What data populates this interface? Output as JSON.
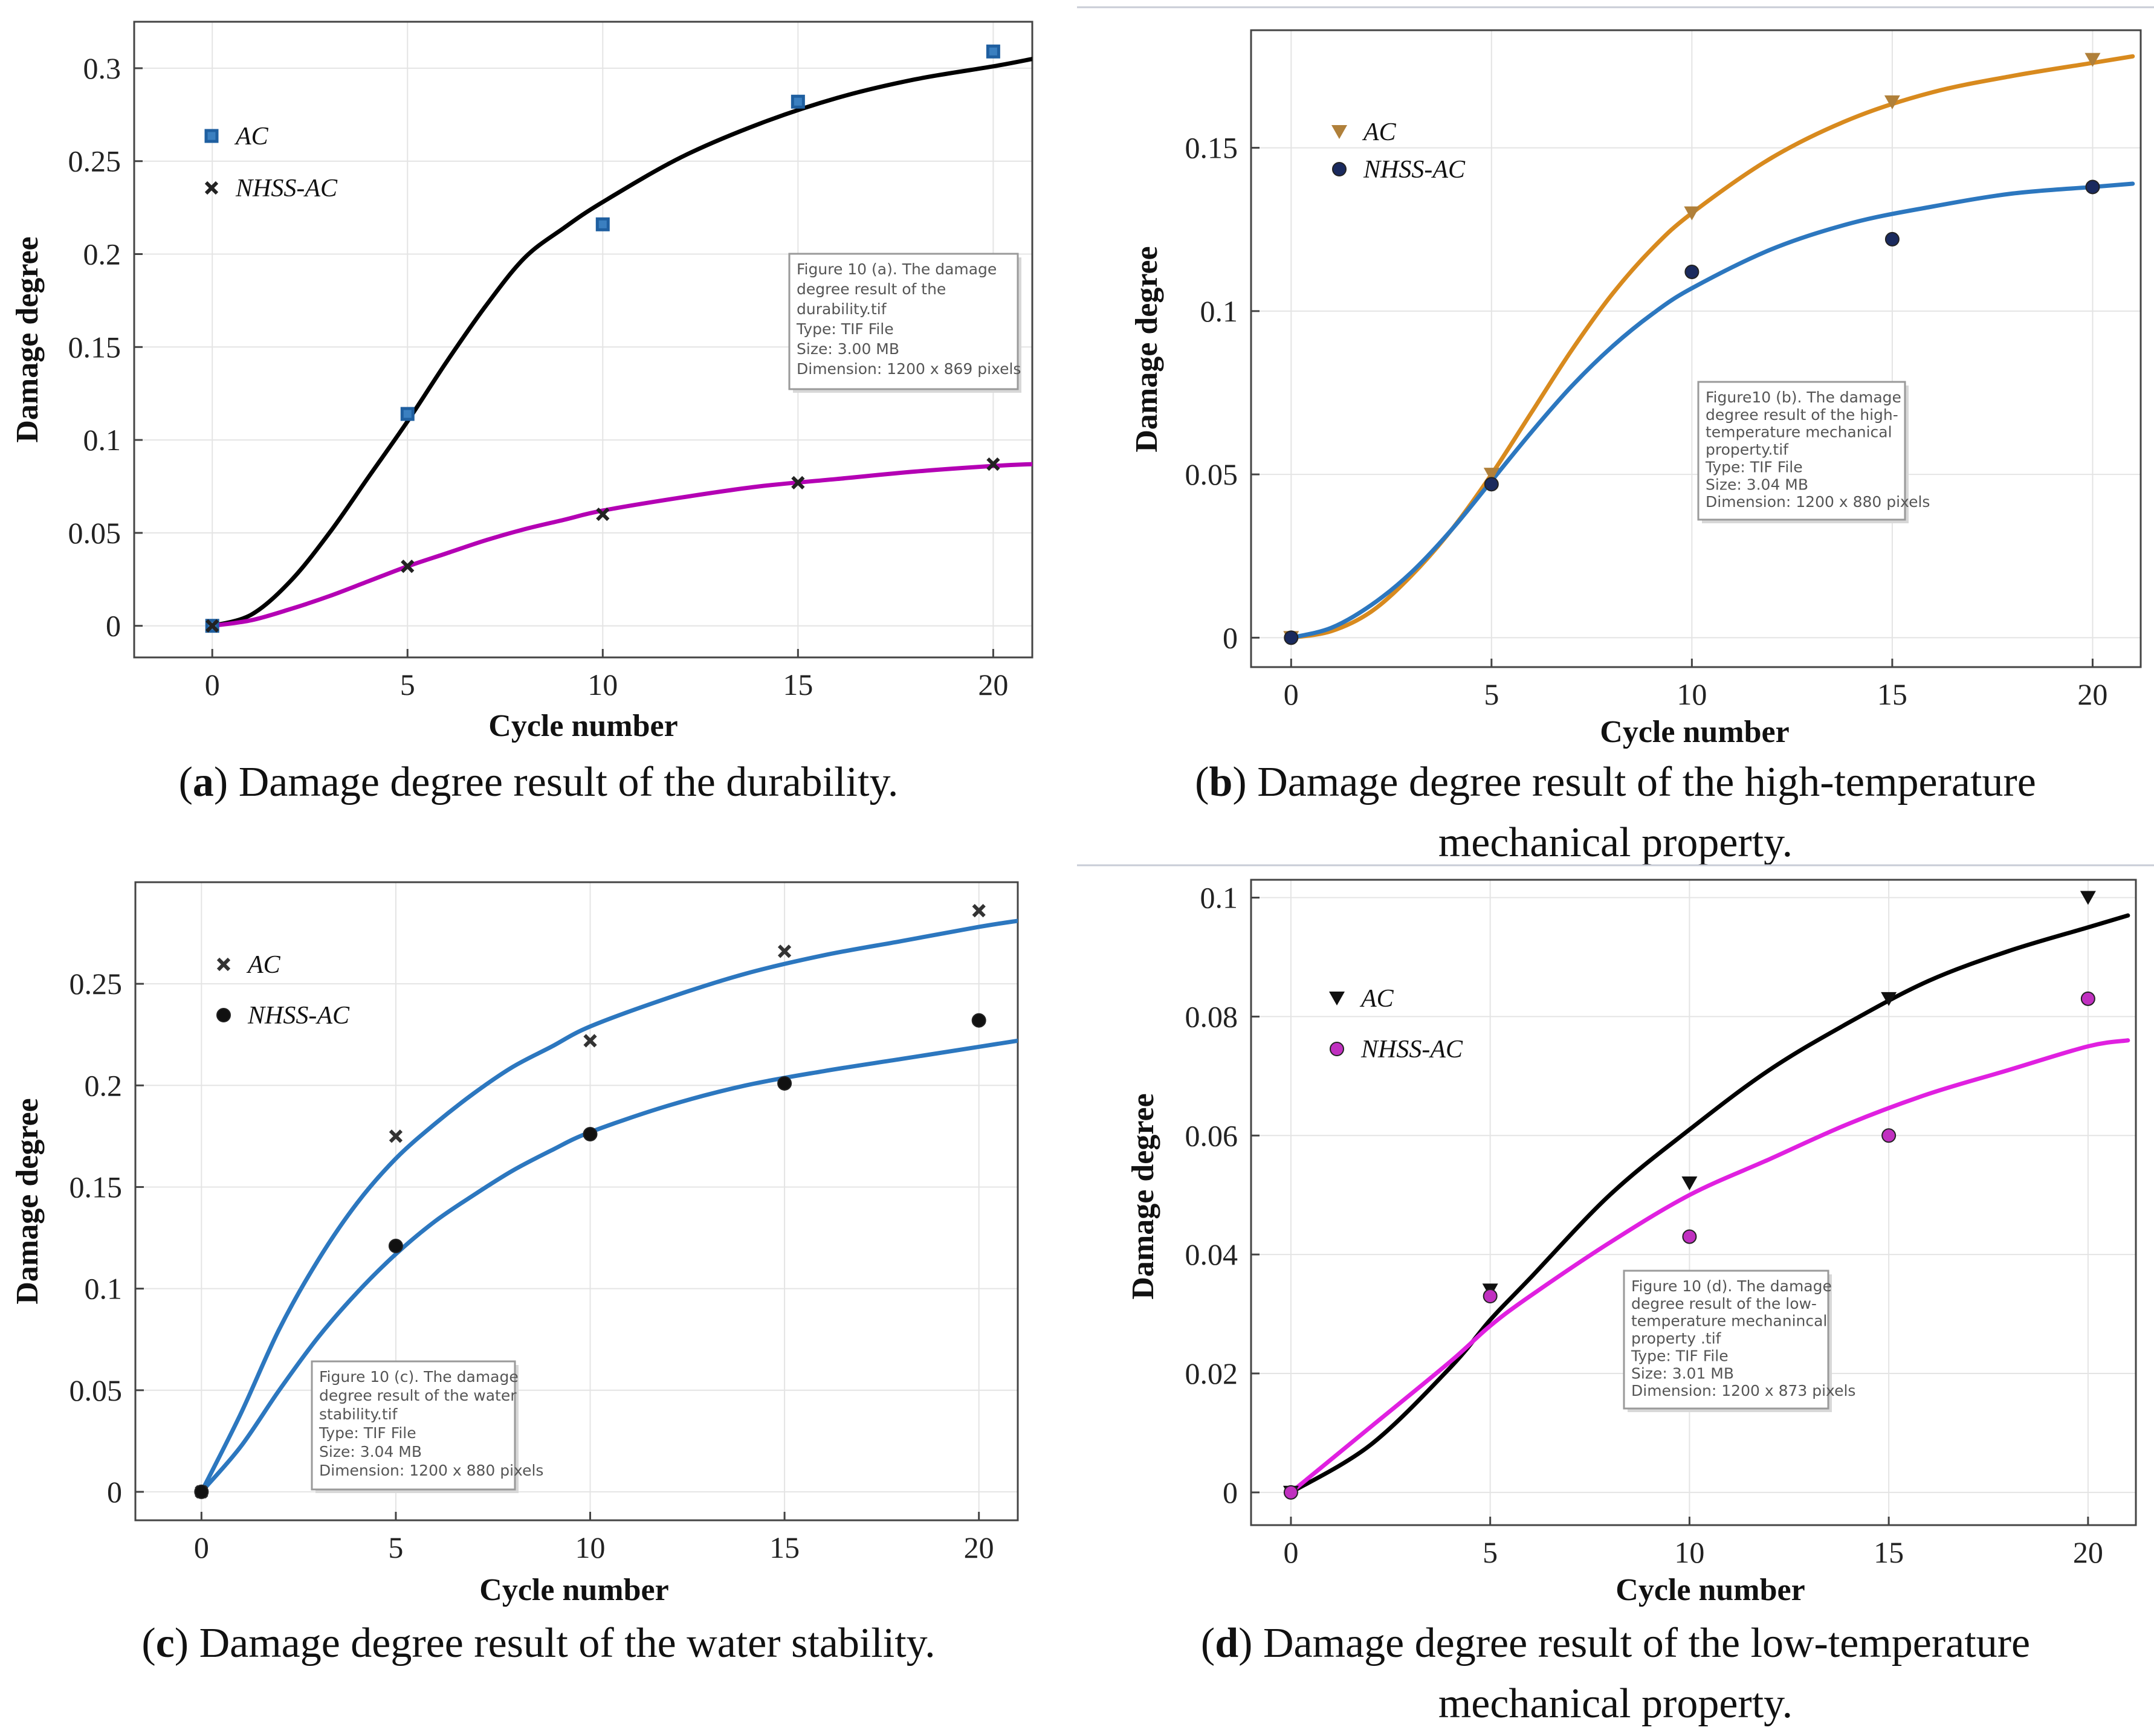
{
  "chart_data": [
    {
      "type": "line",
      "panel_letter": "a",
      "caption": "Damage degree result of the durability.",
      "xlabel": "Cycle number",
      "ylabel": "Damage degree",
      "xlim": [
        -2,
        21
      ],
      "ylim": [
        -0.017,
        0.325
      ],
      "xticks": [
        0,
        5,
        10,
        15,
        20
      ],
      "yticks": [
        0,
        0.05,
        0.1,
        0.15,
        0.2,
        0.25,
        0.3
      ],
      "ytick_labels": [
        "0",
        "0.05",
        "0.1",
        "0.15",
        "0.2",
        "0.25",
        "0.3"
      ],
      "grid": true,
      "legend_position": "top-left",
      "series": [
        {
          "name": "AC",
          "color": "#000000",
          "marker": "square",
          "marker_color": "#1f5fa0",
          "x": [
            0,
            5,
            10,
            15,
            20
          ],
          "y": [
            0,
            0.114,
            0.216,
            0.282,
            0.309
          ],
          "fit_x": [
            0,
            1,
            2,
            3,
            4,
            5,
            6,
            7,
            8,
            9,
            10,
            12,
            14,
            16,
            18,
            20,
            21
          ],
          "fit_y": [
            0,
            0.006,
            0.024,
            0.05,
            0.08,
            0.11,
            0.142,
            0.172,
            0.198,
            0.214,
            0.228,
            0.252,
            0.27,
            0.284,
            0.294,
            0.301,
            0.305
          ]
        },
        {
          "name": "NHSS-AC",
          "color": "#b400b4",
          "marker": "x",
          "marker_color": "#222222",
          "x": [
            0,
            5,
            10,
            15,
            20
          ],
          "y": [
            0,
            0.032,
            0.06,
            0.077,
            0.087
          ],
          "fit_x": [
            0,
            1,
            2,
            3,
            4,
            5,
            6,
            7,
            8,
            9,
            10,
            12,
            14,
            16,
            18,
            20,
            21
          ],
          "fit_y": [
            0,
            0.003,
            0.009,
            0.016,
            0.024,
            0.032,
            0.039,
            0.046,
            0.052,
            0.057,
            0.062,
            0.069,
            0.075,
            0.079,
            0.083,
            0.086,
            0.087
          ]
        }
      ],
      "tooltip": [
        "Figure 10 (a). The damage",
        "degree result of the",
        "durability.tif",
        "Type: TIF File",
        "Size: 3.00 MB",
        "Dimension: 1200 x 869 pixels"
      ]
    },
    {
      "type": "line",
      "panel_letter": "b",
      "caption": "Damage degree result of the high-temperature mechanical property.",
      "caption_lines": [
        "Damage degree result of the high-temperature",
        "mechanical property."
      ],
      "xlabel": "Cycle number",
      "ylabel": "Damage degree",
      "xlim": [
        -1,
        21.2
      ],
      "ylim": [
        -0.009,
        0.186
      ],
      "xticks": [
        0,
        5,
        10,
        15,
        20
      ],
      "yticks": [
        0,
        0.05,
        0.1,
        0.15
      ],
      "ytick_labels": [
        "0",
        "0.05",
        "0.1",
        "0.15"
      ],
      "grid": true,
      "legend_position": "top-left",
      "series": [
        {
          "name": "AC",
          "color": "#d88a1e",
          "marker": "triangle-down",
          "marker_color": "#b0803a",
          "x": [
            0,
            5,
            10,
            15,
            20
          ],
          "y": [
            0,
            0.05,
            0.13,
            0.164,
            0.177
          ],
          "fit_x": [
            0,
            1,
            2,
            3,
            4,
            5,
            6,
            7,
            8,
            9,
            10,
            12,
            14,
            16,
            18,
            20,
            21
          ],
          "fit_y": [
            0,
            0.002,
            0.008,
            0.019,
            0.033,
            0.05,
            0.069,
            0.088,
            0.105,
            0.119,
            0.13,
            0.147,
            0.159,
            0.167,
            0.172,
            0.176,
            0.178
          ]
        },
        {
          "name": "NHSS-AC",
          "color": "#2c77bf",
          "marker": "circle",
          "marker_color": "#1a2a5e",
          "x": [
            0,
            5,
            10,
            15,
            20
          ],
          "y": [
            0,
            0.047,
            0.112,
            0.122,
            0.138
          ],
          "fit_x": [
            0,
            1,
            2,
            3,
            4,
            5,
            6,
            7,
            8,
            9,
            10,
            12,
            14,
            16,
            18,
            20,
            21
          ],
          "fit_y": [
            0,
            0.003,
            0.01,
            0.02,
            0.033,
            0.048,
            0.063,
            0.077,
            0.089,
            0.099,
            0.107,
            0.119,
            0.127,
            0.132,
            0.136,
            0.138,
            0.139
          ]
        }
      ],
      "tooltip": [
        "Figure10 (b). The damage",
        "degree result of the high-",
        "temperature mechanical",
        "property.tif",
        "Type: TIF File",
        "Size: 3.04 MB",
        "Dimension: 1200 x 880 pixels"
      ]
    },
    {
      "type": "line",
      "panel_letter": "c",
      "caption": "Damage degree result of the water stability.",
      "xlabel": "Cycle number",
      "ylabel": "Damage degree",
      "xlim": [
        -1.7,
        21
      ],
      "ylim": [
        -0.014,
        0.3
      ],
      "xticks": [
        0,
        5,
        10,
        15,
        20
      ],
      "yticks": [
        0,
        0.05,
        0.1,
        0.15,
        0.2,
        0.25
      ],
      "ytick_labels": [
        "0",
        "0.05",
        "0.1",
        "0.15",
        "0.2",
        "0.25"
      ],
      "grid": true,
      "legend_position": "top-left",
      "series": [
        {
          "name": "AC",
          "color": "#2c77bf",
          "marker": "x",
          "marker_color": "#333333",
          "x": [
            0,
            5,
            10,
            15,
            20
          ],
          "y": [
            0,
            0.175,
            0.222,
            0.266,
            0.286
          ],
          "fit_x": [
            0,
            1,
            2,
            3,
            4,
            5,
            6,
            7,
            8,
            9,
            10,
            12,
            14,
            16,
            18,
            20,
            21
          ],
          "fit_y": [
            0,
            0.038,
            0.08,
            0.114,
            0.142,
            0.164,
            0.181,
            0.196,
            0.209,
            0.219,
            0.229,
            0.243,
            0.255,
            0.264,
            0.271,
            0.278,
            0.281
          ]
        },
        {
          "name": "NHSS-AC",
          "color": "#2c77bf",
          "marker": "circle",
          "marker_color": "#111111",
          "x": [
            0,
            5,
            10,
            15,
            20
          ],
          "y": [
            0,
            0.121,
            0.176,
            0.201,
            0.232
          ],
          "fit_x": [
            0,
            1,
            2,
            3,
            4,
            5,
            6,
            7,
            8,
            9,
            10,
            12,
            14,
            16,
            18,
            20,
            21
          ],
          "fit_y": [
            0,
            0.022,
            0.05,
            0.076,
            0.098,
            0.117,
            0.133,
            0.146,
            0.158,
            0.168,
            0.177,
            0.19,
            0.2,
            0.207,
            0.213,
            0.219,
            0.222
          ]
        }
      ],
      "tooltip": [
        "Figure 10 (c). The damage",
        "degree result of the water",
        "stability.tif",
        "Type: TIF File",
        "Size: 3.04 MB",
        "Dimension: 1200 x 880 pixels"
      ]
    },
    {
      "type": "line",
      "panel_letter": "d",
      "caption": "Damage degree result of the low-temperature mechanical property.",
      "caption_lines": [
        "Damage degree result of the low-temperature",
        "mechanical property."
      ],
      "xlabel": "Cycle number",
      "ylabel": "Damage degree",
      "xlim": [
        -1,
        21.2
      ],
      "ylim": [
        -0.0055,
        0.103
      ],
      "xticks": [
        0,
        5,
        10,
        15,
        20
      ],
      "yticks": [
        0,
        0.02,
        0.04,
        0.06,
        0.08,
        0.1
      ],
      "ytick_labels": [
        "0",
        "0.02",
        "0.04",
        "0.06",
        "0.08",
        "0.1"
      ],
      "grid": true,
      "legend_position": "top-left",
      "series": [
        {
          "name": "AC",
          "color": "#000000",
          "marker": "triangle-down",
          "marker_color": "#111111",
          "x": [
            0,
            5,
            10,
            15,
            20
          ],
          "y": [
            0,
            0.034,
            0.052,
            0.083,
            0.1
          ],
          "fit_x": [
            0,
            2,
            4,
            5,
            6,
            8,
            10,
            12,
            14,
            16,
            18,
            20,
            21
          ],
          "fit_y": [
            0,
            0.008,
            0.021,
            0.029,
            0.036,
            0.05,
            0.061,
            0.071,
            0.079,
            0.086,
            0.091,
            0.095,
            0.097
          ]
        },
        {
          "name": "NHSS-AC",
          "color": "#e020e0",
          "marker": "circle",
          "marker_color": "#c030c0",
          "x": [
            0,
            5,
            10,
            15,
            20
          ],
          "y": [
            0,
            0.033,
            0.043,
            0.06,
            0.083
          ],
          "fit_x": [
            0,
            2,
            4,
            5,
            6,
            8,
            10,
            12,
            14,
            16,
            18,
            20,
            21
          ],
          "fit_y": [
            0,
            0.011,
            0.022,
            0.028,
            0.033,
            0.042,
            0.05,
            0.056,
            0.062,
            0.067,
            0.071,
            0.075,
            0.076
          ]
        }
      ],
      "tooltip": [
        "Figure 10 (d). The damage",
        "degree result of the low-",
        "temperature mechanincal",
        "property .tif",
        "Type: TIF File",
        "Size: 3.01 MB",
        "Dimension: 1200 x 873 pixels"
      ]
    }
  ]
}
